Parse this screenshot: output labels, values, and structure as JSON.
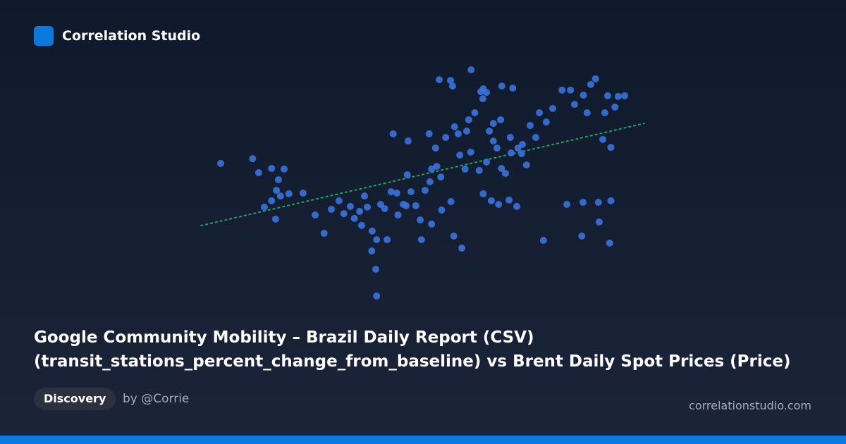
{
  "header": {
    "brand": "Correlation Studio"
  },
  "chart_data": {
    "type": "scatter",
    "color": "#3a72dc",
    "trendline": true,
    "trendline_color": "#22a35a",
    "x": [
      0,
      7.9,
      9.4,
      12.6,
      15.7,
      14.3,
      13.8,
      14.8,
      12.6,
      10.8,
      13.6,
      16.9,
      20.4,
      23.4,
      25.6,
      27.4,
      29.3,
      30.5,
      32.1,
      33.1,
      34.4,
      35.6,
      34.9,
      37.5,
      38.6,
      37.4,
      38.4,
      38.6,
      39.6,
      41.2,
      40.6,
      42.2,
      42.7,
      43.9,
      45.2,
      46.4,
      46.2,
      47.1,
      48.3,
      49.7,
      49.4,
      50.6,
      51.8,
      52.2,
      52.2,
      51.6,
      53.2,
      54.1,
      54.5,
      54.7,
      55.7,
      56.9,
      57.4,
      57,
      57.7,
      57.9,
      59.2,
      59.7,
      60.5,
      61.4,
      62,
      61.9,
      62.9,
      64,
      64.4,
      65,
      65,
      64.9,
      65.8,
      65.8,
      66.5,
      67,
      67.5,
      68.4,
      68.8,
      69.3,
      69.5,
      69.6,
      70.5,
      71.4,
      71.7,
      72.3,
      73.3,
      73.6,
      74.5,
      75.7,
      76.6,
      78,
      78.9,
      79.9,
      80.6,
      82.2,
      84.5,
      85.7,
      86.6,
      87.6,
      89.4,
      89.7,
      89.8,
      90.7,
      91.6,
      92.8,
      93.5,
      93.7,
      94.6,
      95.1,
      95.8,
      96.3,
      96.6,
      96.6,
      97.6,
      98.4,
      100,
      36.3,
      43.6,
      45.9,
      53.5,
      58.8,
      60.9,
      67.5,
      71.9,
      74.7
    ],
    "values": [
      58.6,
      60.7,
      54.5,
      56.4,
      56.1,
      51.4,
      46.7,
      44.2,
      42.1,
      39.3,
      34,
      45.2,
      45.5,
      35.8,
      27.7,
      38.3,
      42.1,
      36.4,
      39.6,
      34.3,
      37.4,
      44.2,
      31.2,
      28.7,
      24.9,
      19.9,
      11.8,
      0,
      40.5,
      24.9,
      38.6,
      46.1,
      71.7,
      35.8,
      40.5,
      68.5,
      53.6,
      46.1,
      39.9,
      24.9,
      33.6,
      46.7,
      50.5,
      56.1,
      31.8,
      71.7,
      65.4,
      95.6,
      52.6,
      38,
      70.1,
      95.3,
      92.8,
      41.7,
      26.5,
      74.8,
      62.3,
      21.2,
      56.1,
      77.9,
      100,
      63.6,
      81,
      55.5,
      90.3,
      91.6,
      45.2,
      87.2,
      90,
      59.2,
      72.9,
      42.1,
      68.5,
      65.4,
      40.5,
      77.9,
      56.4,
      92.8,
      54.2,
      42.4,
      70.1,
      91.9,
      39.6,
      65.4,
      62.9,
      57.9,
      75.4,
      70.1,
      81,
      24.6,
      76.9,
      82.9,
      91,
      40.5,
      91,
      84.7,
      26.5,
      41.4,
      88.8,
      81,
      93.5,
      96,
      41.4,
      32.7,
      69.2,
      81,
      88.5,
      23.4,
      42.1,
      65.7,
      83.5,
      88.2,
      88.5,
      39.3,
      45.5,
      39.9,
      57.3,
      71.7,
      72.9,
      76.3,
      63.2,
      67
    ]
  },
  "title": [
    "Google Community Mobility – Brazil Daily Report (CSV)",
    "(transit_stations_percent_change_from_baseline) vs Brent Daily Spot Prices (Price)"
  ],
  "tag": "Discovery",
  "author": "by @Corrie",
  "url": "correlationstudio.com"
}
